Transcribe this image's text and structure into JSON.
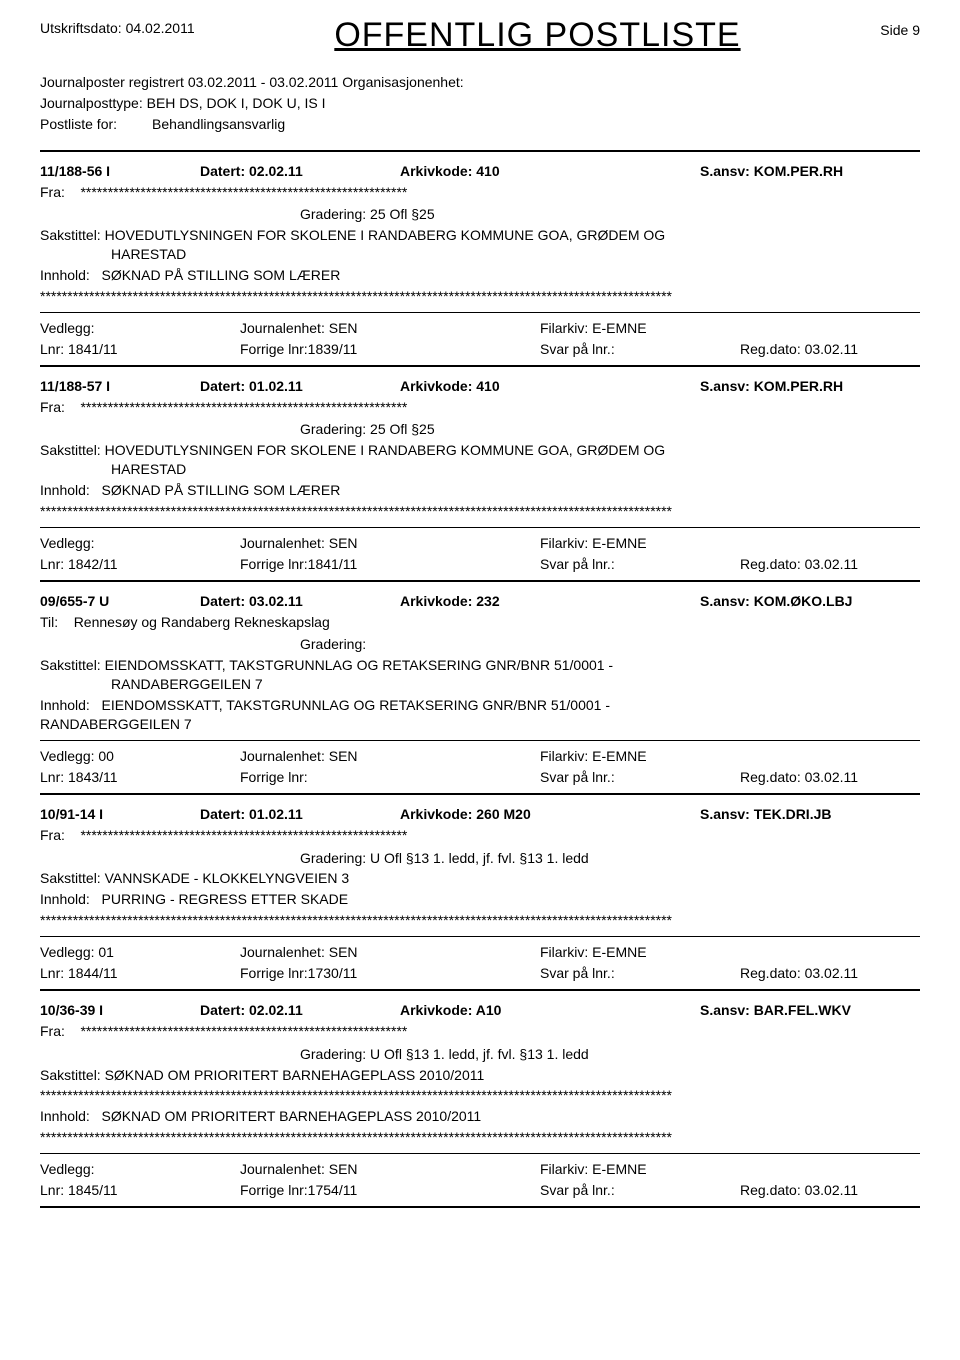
{
  "header": {
    "print_label": "Utskriftsdato:",
    "print_date": "04.02.2011",
    "title": "OFFENTLIG POSTLISTE",
    "side_label": "Side",
    "side_num": "9"
  },
  "meta": {
    "line1_a": "Journalposter registrert",
    "line1_b": "03.02.2011 - 03.02.2011",
    "line1_c": "Organisasjonenhet:",
    "line2_label": "Journalposttype:",
    "line2_val": "BEH DS, DOK I, DOK U, IS I",
    "line3_label": "Postliste for:",
    "line3_val": "Behandlingsansvarlig"
  },
  "labels": {
    "datert": "Datert:",
    "arkiv": "Arkivkode:",
    "sansv": "S.ansv:",
    "fra": "Fra:",
    "til": "Til:",
    "grad": "Gradering:",
    "sak": "Sakstittel:",
    "inn": "Innhold:",
    "ved": "Vedlegg:",
    "je": "Journalenhet:",
    "fil": "Filarkiv:",
    "lnr": "Lnr:",
    "flnr": "Forrige lnr:",
    "svar": "Svar på lnr.:",
    "reg": "Reg.dato:"
  },
  "stars60": "************************************************************",
  "starsLong": "********************************************************************************************************************",
  "entries": [
    {
      "id": "11/188-56 I",
      "datert": "02.02.11",
      "arkiv": "410",
      "ansv": "KOM.PER.RH",
      "fra_stars": true,
      "grad": "25 Ofl §25",
      "sak": "HOVEDUTLYSNINGEN FOR SKOLENE I RANDABERG KOMMUNE  GOA, GRØDEM OG",
      "sak2": "HARESTAD",
      "inn": "SØKNAD PÅ STILLING SOM LÆRER",
      "inn_stars": true,
      "ved": "",
      "je": "SEN",
      "fil": "E-EMNE",
      "lnr": "1841/11",
      "flnr": "1839/11",
      "svar": "",
      "reg": "03.02.11"
    },
    {
      "id": "11/188-57 I",
      "datert": "01.02.11",
      "arkiv": "410",
      "ansv": "KOM.PER.RH",
      "fra_stars": true,
      "grad": "25 Ofl §25",
      "sak": "HOVEDUTLYSNINGEN FOR SKOLENE I RANDABERG KOMMUNE  GOA, GRØDEM OG",
      "sak2": "HARESTAD",
      "inn": "SØKNAD PÅ STILLING SOM LÆRER",
      "inn_stars": true,
      "ved": "",
      "je": "SEN",
      "fil": "E-EMNE",
      "lnr": "1842/11",
      "flnr": "1841/11",
      "svar": "",
      "reg": "03.02.11"
    },
    {
      "id": "09/655-7 U",
      "datert": "03.02.11",
      "arkiv": "232",
      "ansv": "KOM.ØKO.LBJ",
      "til": "Rennesøy og Randaberg Rekneskapslag",
      "grad": "",
      "sak": "EIENDOMSSKATT, TAKSTGRUNNLAG OG RETAKSERING   GNR/BNR 51/0001 -",
      "sak2": "RANDABERGGEILEN 7",
      "inn": "EIENDOMSSKATT, TAKSTGRUNNLAG OG RETAKSERING   GNR/BNR 51/0001 -",
      "inn2": "RANDABERGGEILEN 7",
      "ved": "00",
      "je": "SEN",
      "fil": "E-EMNE",
      "lnr": "1843/11",
      "flnr": "",
      "svar": "",
      "reg": "03.02.11"
    },
    {
      "id": "10/91-14 I",
      "datert": "01.02.11",
      "arkiv": "260 M20",
      "ansv": "TEK.DRI.JB",
      "fra_stars": true,
      "grad": "U Ofl §13 1. ledd, jf. fvl. §13 1. ledd",
      "sak": "VANNSKADE -   KLOKKELYNGVEIEN 3",
      "inn": "PURRING - REGRESS ETTER SKADE",
      "inn_stars": true,
      "ved": "01",
      "je": "SEN",
      "fil": "E-EMNE",
      "lnr": "1844/11",
      "flnr": "1730/11",
      "svar": "",
      "reg": "03.02.11"
    },
    {
      "id": "10/36-39 I",
      "datert": "02.02.11",
      "arkiv": "A10",
      "ansv": "BAR.FEL.WKV",
      "fra_stars": true,
      "grad": "U Ofl §13 1. ledd, jf. fvl. §13 1. ledd",
      "sak": "SØKNAD OM PRIORITERT BARNEHAGEPLASS 2010/2011",
      "sak_stars": true,
      "inn": "SØKNAD OM PRIORITERT BARNEHAGEPLASS 2010/2011",
      "inn_stars": true,
      "ved": "",
      "je": "SEN",
      "fil": "E-EMNE",
      "lnr": "1845/11",
      "flnr": "1754/11",
      "svar": "",
      "reg": "03.02.11"
    }
  ]
}
